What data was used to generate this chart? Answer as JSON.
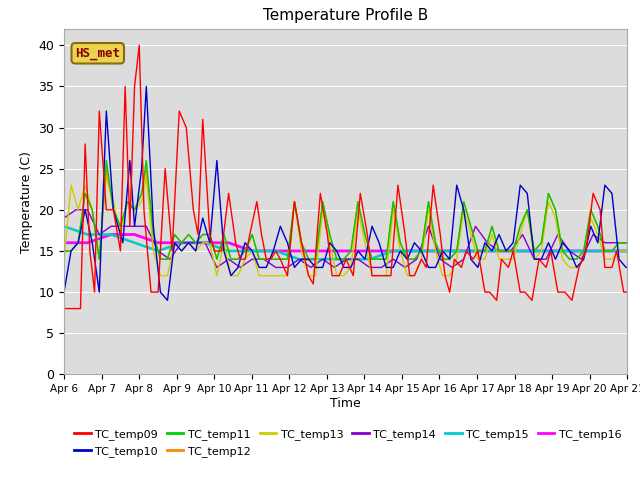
{
  "title": "Temperature Profile B",
  "xlabel": "Time",
  "ylabel": "Temperature (C)",
  "ylim": [
    0,
    42
  ],
  "yticks": [
    0,
    5,
    10,
    15,
    20,
    25,
    30,
    35,
    40
  ],
  "background_color": "#dcdcdc",
  "annotation_text": "HS_met",
  "annotation_color": "#8B0000",
  "annotation_bg": "#e8d44d",
  "series_colors": {
    "TC_temp09": "#ff0000",
    "TC_temp10": "#0000cc",
    "TC_temp11": "#00cc00",
    "TC_temp12": "#ff8800",
    "TC_temp13": "#cccc00",
    "TC_temp14": "#8800cc",
    "TC_temp15": "#00cccc",
    "TC_temp16": "#ff00ff"
  },
  "date_labels": [
    "Apr 6",
    "Apr 7",
    "Apr 8",
    "Apr 9",
    "Apr 10",
    "Apr 11",
    "Apr 12",
    "Apr 13",
    "Apr 14",
    "Apr 15",
    "Apr 16",
    "Apr 17",
    "Apr 18",
    "Apr 19",
    "Apr 20",
    "Apr 21"
  ],
  "n_points": 480
}
